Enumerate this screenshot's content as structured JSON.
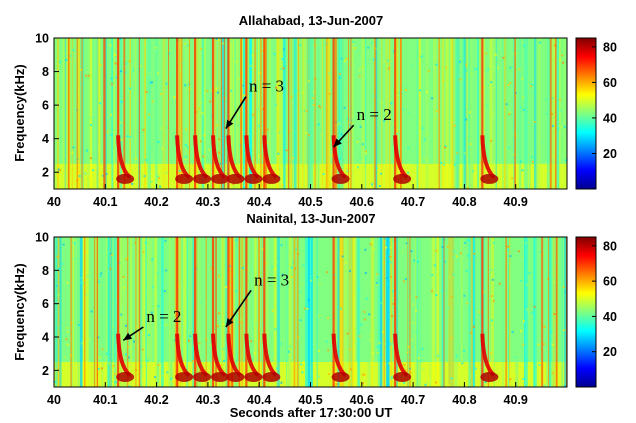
{
  "chart_data": [
    {
      "type": "heatmap",
      "title": "Allahabad, 13-Jun-2007",
      "xlabel": "",
      "ylabel": "Frequency(kHz)",
      "xlim": [
        40,
        41
      ],
      "ylim": [
        1,
        10
      ],
      "x_ticks": [
        "40",
        "40.1",
        "40.2",
        "40.3",
        "40.4",
        "40.5",
        "40.6",
        "40.7",
        "40.8",
        "40.9"
      ],
      "x_tick_values": [
        40,
        40.1,
        40.2,
        40.3,
        40.4,
        40.5,
        40.6,
        40.7,
        40.8,
        40.9
      ],
      "y_ticks": [
        "2",
        "4",
        "6",
        "8",
        "10"
      ],
      "y_tick_values": [
        2,
        4,
        6,
        8,
        10
      ],
      "colorbar": {
        "min": 0,
        "max": 85,
        "ticks": [
          "20",
          "40",
          "60",
          "80"
        ],
        "tick_values": [
          20,
          40,
          60,
          80
        ],
        "colormap": "jet"
      },
      "strong_features_s": [
        40.125,
        40.24,
        40.275,
        40.31,
        40.34,
        40.375,
        40.41,
        40.545,
        40.665,
        40.835
      ],
      "annotations": [
        {
          "text": "n = 3",
          "x": 40.38,
          "y": 6.8,
          "arrow_to": [
            40.335,
            4.6
          ]
        },
        {
          "text": "n = 2",
          "x": 40.59,
          "y": 5.1,
          "arrow_to": [
            40.545,
            3.5
          ]
        }
      ]
    },
    {
      "type": "heatmap",
      "title": "Nainital, 13-Jun-2007",
      "xlabel": "Seconds after 17:30:00 UT",
      "ylabel": "Frequency(kHz)",
      "xlim": [
        40,
        41
      ],
      "ylim": [
        1,
        10
      ],
      "x_ticks": [
        "40",
        "40.1",
        "40.2",
        "40.3",
        "40.4",
        "40.5",
        "40.6",
        "40.7",
        "40.8",
        "40.9"
      ],
      "x_tick_values": [
        40,
        40.1,
        40.2,
        40.3,
        40.4,
        40.5,
        40.6,
        40.7,
        40.8,
        40.9
      ],
      "y_ticks": [
        "2",
        "4",
        "6",
        "8",
        "10"
      ],
      "y_tick_values": [
        2,
        4,
        6,
        8,
        10
      ],
      "colorbar": {
        "min": 0,
        "max": 85,
        "ticks": [
          "20",
          "40",
          "60",
          "80"
        ],
        "tick_values": [
          20,
          40,
          60,
          80
        ],
        "colormap": "jet"
      },
      "strong_features_s": [
        40.125,
        40.24,
        40.275,
        40.31,
        40.34,
        40.375,
        40.41,
        40.545,
        40.665,
        40.835
      ],
      "annotations": [
        {
          "text": "n = 2",
          "x": 40.18,
          "y": 4.9,
          "arrow_to": [
            40.135,
            3.8
          ]
        },
        {
          "text": "n = 3",
          "x": 40.39,
          "y": 7.1,
          "arrow_to": [
            40.335,
            4.6
          ]
        }
      ]
    }
  ]
}
